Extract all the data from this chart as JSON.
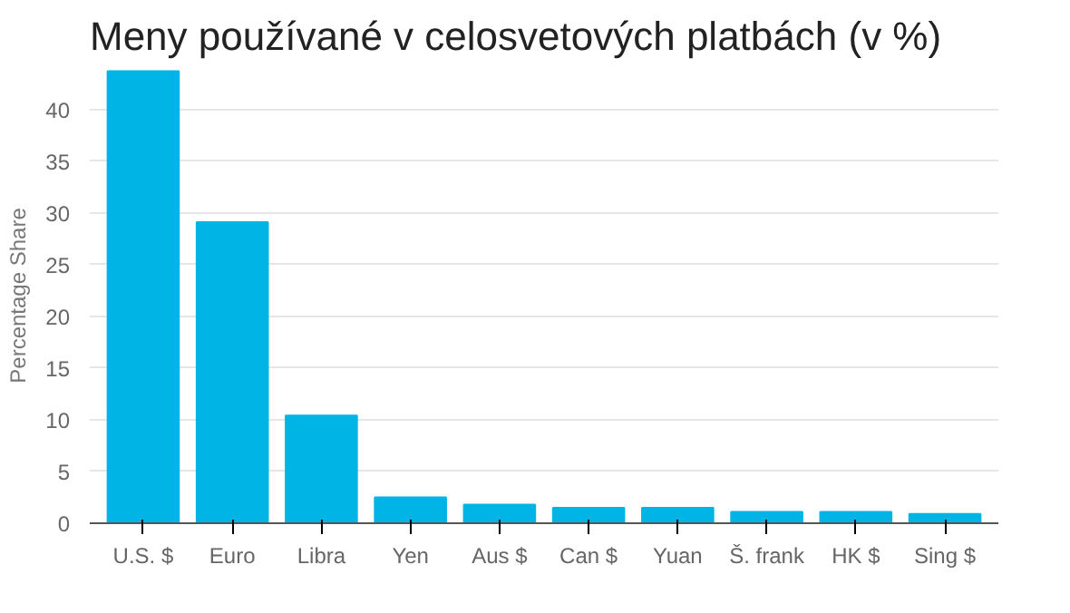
{
  "chart_data": {
    "type": "bar",
    "title": "Meny používané v celosvetových platbách (v %)",
    "ylabel": "Percentage Share",
    "categories": [
      "U.S. $",
      "Euro",
      "Libra",
      "Yen",
      "Aus $",
      "Can $",
      "Yuan",
      "Š. frank",
      "HK $",
      "Sing $"
    ],
    "values": [
      43.7,
      29.1,
      10.4,
      2.5,
      1.8,
      1.5,
      1.5,
      1.1,
      1.1,
      0.9
    ],
    "color": "#00b4e6",
    "ylim": [
      0,
      44
    ],
    "yticks": [
      0,
      5,
      10,
      15,
      20,
      25,
      30,
      35,
      40
    ],
    "grid": "y"
  }
}
